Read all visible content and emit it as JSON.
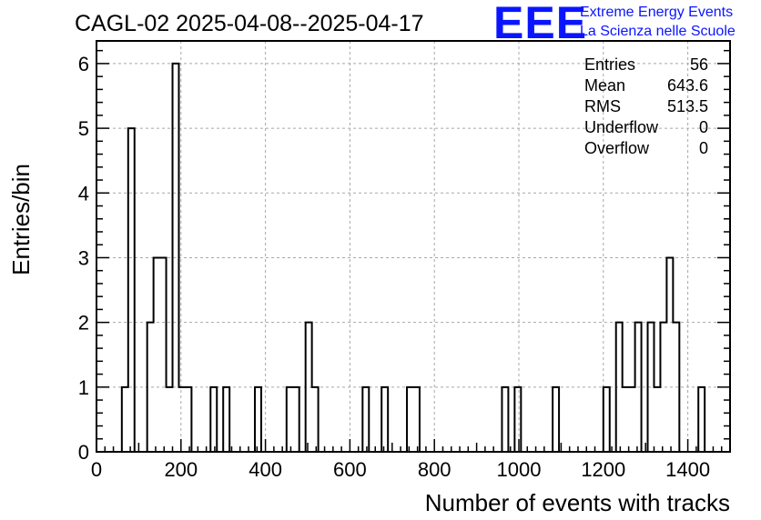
{
  "chart_data": {
    "type": "bar",
    "title": "CAGL-02 2025-04-08--2025-04-17",
    "xlabel": "Number of events with tracks",
    "ylabel": "Entries/bin",
    "xlim": [
      0,
      1500
    ],
    "ylim": [
      0,
      6.35
    ],
    "x_ticks": [
      0,
      200,
      400,
      600,
      800,
      1000,
      1200,
      1400
    ],
    "y_ticks": [
      0,
      1,
      2,
      3,
      4,
      5,
      6
    ],
    "grid": true,
    "bin_width": 15,
    "bins": [
      {
        "x": 60,
        "y": 1
      },
      {
        "x": 75,
        "y": 5
      },
      {
        "x": 120,
        "y": 2
      },
      {
        "x": 135,
        "y": 3
      },
      {
        "x": 150,
        "y": 3
      },
      {
        "x": 165,
        "y": 1
      },
      {
        "x": 180,
        "y": 6
      },
      {
        "x": 195,
        "y": 1
      },
      {
        "x": 210,
        "y": 1
      },
      {
        "x": 270,
        "y": 1
      },
      {
        "x": 300,
        "y": 1
      },
      {
        "x": 375,
        "y": 1
      },
      {
        "x": 450,
        "y": 1
      },
      {
        "x": 465,
        "y": 1
      },
      {
        "x": 495,
        "y": 2
      },
      {
        "x": 510,
        "y": 1
      },
      {
        "x": 630,
        "y": 1
      },
      {
        "x": 675,
        "y": 1
      },
      {
        "x": 735,
        "y": 1
      },
      {
        "x": 750,
        "y": 1
      },
      {
        "x": 960,
        "y": 1
      },
      {
        "x": 990,
        "y": 1
      },
      {
        "x": 1080,
        "y": 1
      },
      {
        "x": 1200,
        "y": 1
      },
      {
        "x": 1230,
        "y": 2
      },
      {
        "x": 1245,
        "y": 1
      },
      {
        "x": 1260,
        "y": 1
      },
      {
        "x": 1275,
        "y": 2
      },
      {
        "x": 1305,
        "y": 2
      },
      {
        "x": 1320,
        "y": 1
      },
      {
        "x": 1335,
        "y": 2
      },
      {
        "x": 1350,
        "y": 3
      },
      {
        "x": 1365,
        "y": 2
      },
      {
        "x": 1425,
        "y": 1
      }
    ],
    "stats": [
      {
        "label": "Entries",
        "value": "56"
      },
      {
        "label": "Mean",
        "value": "643.6"
      },
      {
        "label": "RMS",
        "value": "513.5"
      },
      {
        "label": "Underflow",
        "value": "0"
      },
      {
        "label": "Overflow",
        "value": "0"
      }
    ]
  },
  "logo": {
    "mark": "EEE",
    "line1": "Extreme Energy Events",
    "line2": "La Scienza nelle Scuole",
    "color": "#0a15ff"
  }
}
